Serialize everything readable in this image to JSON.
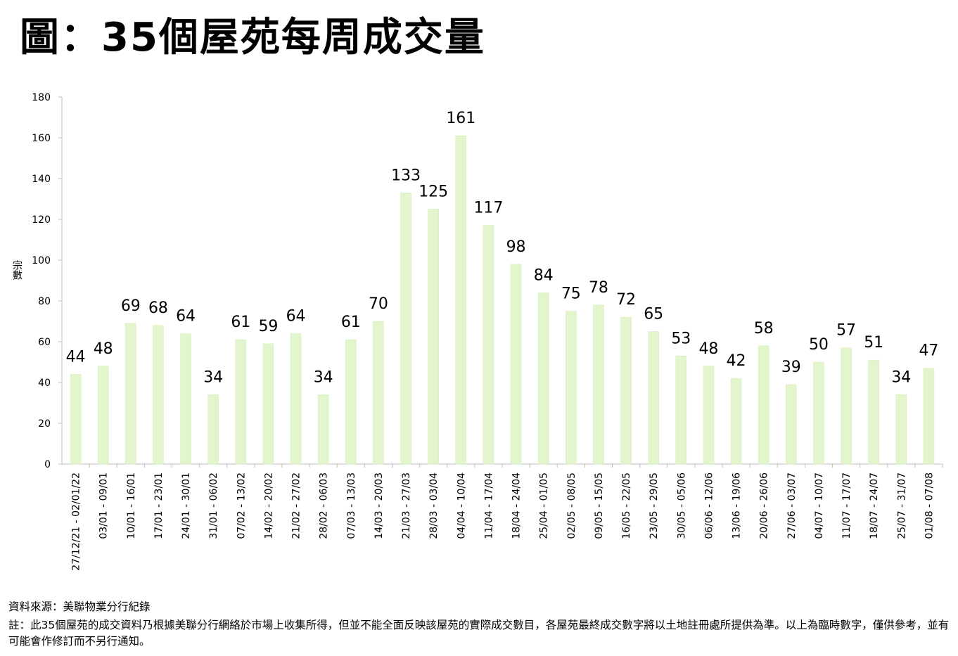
{
  "title": "圖：35個屋苑每周成交量",
  "footer": {
    "source": "資料來源：美聯物業分行紀錄",
    "note": "註：此35個屋苑的成交資料乃根據美聯分行網絡於市場上收集所得，但並不能全面反映該屋苑的實際成交數目，各屋苑最終成交數字將以土地註冊處所提供為準。以上為臨時數字，僅供參考，並有可能會作修訂而不另行通知。"
  },
  "chart_data": {
    "type": "bar",
    "title": "圖：35個屋苑每周成交量",
    "xlabel": "",
    "ylabel": "宗數",
    "ylim": [
      0,
      180
    ],
    "yticks": [
      0,
      20,
      40,
      60,
      80,
      100,
      120,
      140,
      160,
      180
    ],
    "grid": false,
    "bar_color": "#e2f5cc",
    "categories": [
      "27/12/21 - 02/01/22",
      "03/01 - 09/01",
      "10/01 - 16/01",
      "17/01 - 23/01",
      "24/01 - 30/01",
      "31/01 - 06/02",
      "07/02 - 13/02",
      "14/02 - 20/02",
      "21/02 - 27/02",
      "28/02 - 06/03",
      "07/03 - 13/03",
      "14/03 - 20/03",
      "21/03 - 27/03",
      "28/03 - 03/04",
      "04/04 - 10/04",
      "11/04 - 17/04",
      "18/04 - 24/04",
      "25/04 - 01/05",
      "02/05 - 08/05",
      "09/05 - 15/05",
      "16/05 - 22/05",
      "23/05 - 29/05",
      "30/05 - 05/06",
      "06/06 - 12/06",
      "13/06 - 19/06",
      "20/06 - 26/06",
      "27/06 - 03/07",
      "04/07 - 10/07",
      "11/07 - 17/07",
      "18/07 - 24/07",
      "25/07 - 31/07",
      "01/08 - 07/08"
    ],
    "values": [
      44,
      48,
      69,
      68,
      64,
      34,
      61,
      59,
      64,
      34,
      61,
      70,
      133,
      125,
      161,
      117,
      98,
      84,
      75,
      78,
      72,
      65,
      53,
      48,
      42,
      58,
      39,
      50,
      57,
      51,
      34,
      47
    ]
  }
}
